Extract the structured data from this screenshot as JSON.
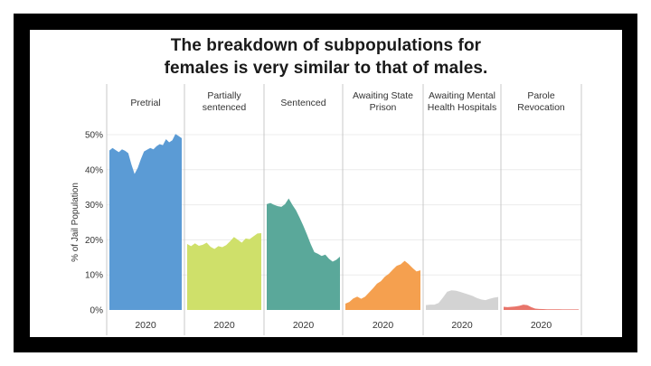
{
  "chart_data": {
    "type": "area",
    "title_line1": "The breakdown of subpopulations for",
    "title_line2": "females is very similar to that of males.",
    "ylabel": "% of Jail Population",
    "ylim": [
      0,
      50
    ],
    "yticks": [
      0,
      10,
      20,
      30,
      40,
      50
    ],
    "ytick_labels": [
      "0%",
      "10%",
      "20%",
      "30%",
      "40%",
      "50%"
    ],
    "xlabel_each_panel": "2020",
    "grid": true,
    "panels": [
      {
        "name": "Pretrial",
        "label_lines": [
          "Pretrial"
        ],
        "color": "#5b9bd5",
        "values": [
          45.5,
          46.2,
          45.6,
          45.0,
          45.8,
          45.4,
          44.7,
          41.5,
          38.8,
          40.5,
          43.0,
          45.2,
          45.7,
          46.2,
          45.8,
          46.7,
          47.3,
          47.0,
          48.7,
          47.8,
          48.4,
          50.2,
          49.6,
          49.0
        ]
      },
      {
        "name": "Partially sentenced",
        "label_lines": [
          "Partially",
          "sentenced"
        ],
        "color": "#cfe06a",
        "values": [
          18.8,
          18.2,
          19.0,
          18.3,
          18.6,
          19.2,
          18.0,
          17.4,
          18.2,
          17.9,
          18.5,
          19.6,
          20.8,
          20.0,
          19.2,
          20.4,
          20.2,
          21.0,
          21.8,
          21.9
        ]
      },
      {
        "name": "Sentenced",
        "label_lines": [
          "Sentenced"
        ],
        "color": "#5aa89a",
        "values": [
          30.2,
          30.5,
          30.0,
          29.6,
          29.4,
          30.2,
          31.8,
          30.0,
          28.4,
          26.3,
          24.0,
          21.5,
          18.8,
          16.5,
          16.0,
          15.4,
          15.8,
          14.6,
          13.8,
          14.3,
          15.2
        ]
      },
      {
        "name": "Awaiting State Prison",
        "label_lines": [
          "Awaiting State",
          "Prison"
        ],
        "color": "#f5a04f",
        "values": [
          1.8,
          2.3,
          3.3,
          3.8,
          3.2,
          3.8,
          5.0,
          6.2,
          7.5,
          8.2,
          9.5,
          10.3,
          11.5,
          12.6,
          13.0,
          14.0,
          13.1,
          12.0,
          11.0,
          11.3
        ]
      },
      {
        "name": "Awaiting Mental Health Hospitals",
        "label_lines": [
          "Awaiting Mental",
          "Health Hospitals"
        ],
        "color": "#d3d3d3",
        "values": [
          1.4,
          1.5,
          1.5,
          2.0,
          3.5,
          5.2,
          5.6,
          5.5,
          5.2,
          4.8,
          4.4,
          4.0,
          3.4,
          3.0,
          2.8,
          3.2,
          3.5,
          3.7
        ]
      },
      {
        "name": "Parole Revocation",
        "label_lines": [
          "Parole",
          "Revocation"
        ],
        "color": "#e8756b",
        "values": [
          0.9,
          0.8,
          0.9,
          1.0,
          1.2,
          1.5,
          1.4,
          0.8,
          0.4,
          0.3,
          0.25,
          0.2,
          0.2,
          0.2,
          0.2,
          0.15,
          0.15,
          0.15,
          0.15,
          0.15
        ]
      }
    ]
  }
}
